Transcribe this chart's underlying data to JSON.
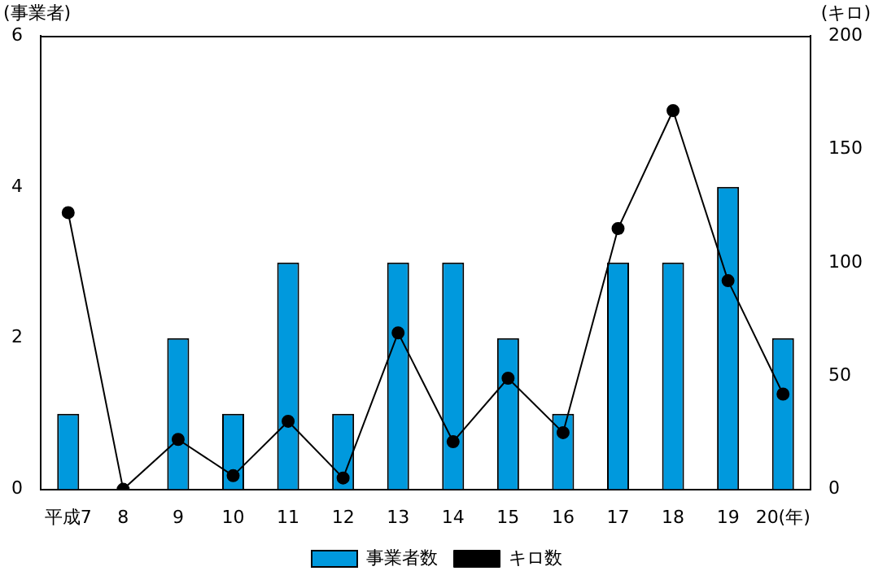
{
  "chart_data": {
    "type": "bar",
    "categories": [
      "平成7",
      "8",
      "9",
      "10",
      "11",
      "12",
      "13",
      "14",
      "15",
      "16",
      "17",
      "18",
      "19",
      "20(年)"
    ],
    "ylabel": "(事業者)",
    "y2label": "(キロ)",
    "series": [
      {
        "name": "事業者数",
        "color": "#0099dd",
        "values": [
          1,
          0,
          2,
          1,
          3,
          1,
          3,
          3,
          2,
          1,
          3,
          3,
          4,
          2
        ]
      },
      {
        "name": "キロ数",
        "type": "line",
        "axis": "y2",
        "color": "#000000",
        "marker": "circle",
        "values": [
          122,
          0,
          22,
          6,
          30,
          5,
          69,
          21,
          49,
          25,
          115,
          167,
          92,
          42
        ]
      }
    ],
    "ylim": [
      0,
      6
    ],
    "yticks": [
      0,
      2,
      4,
      6
    ],
    "y2lim": [
      0,
      200
    ],
    "y2ticks": [
      0,
      50,
      100,
      150,
      200
    ],
    "grid": false,
    "legend": "bottom"
  }
}
